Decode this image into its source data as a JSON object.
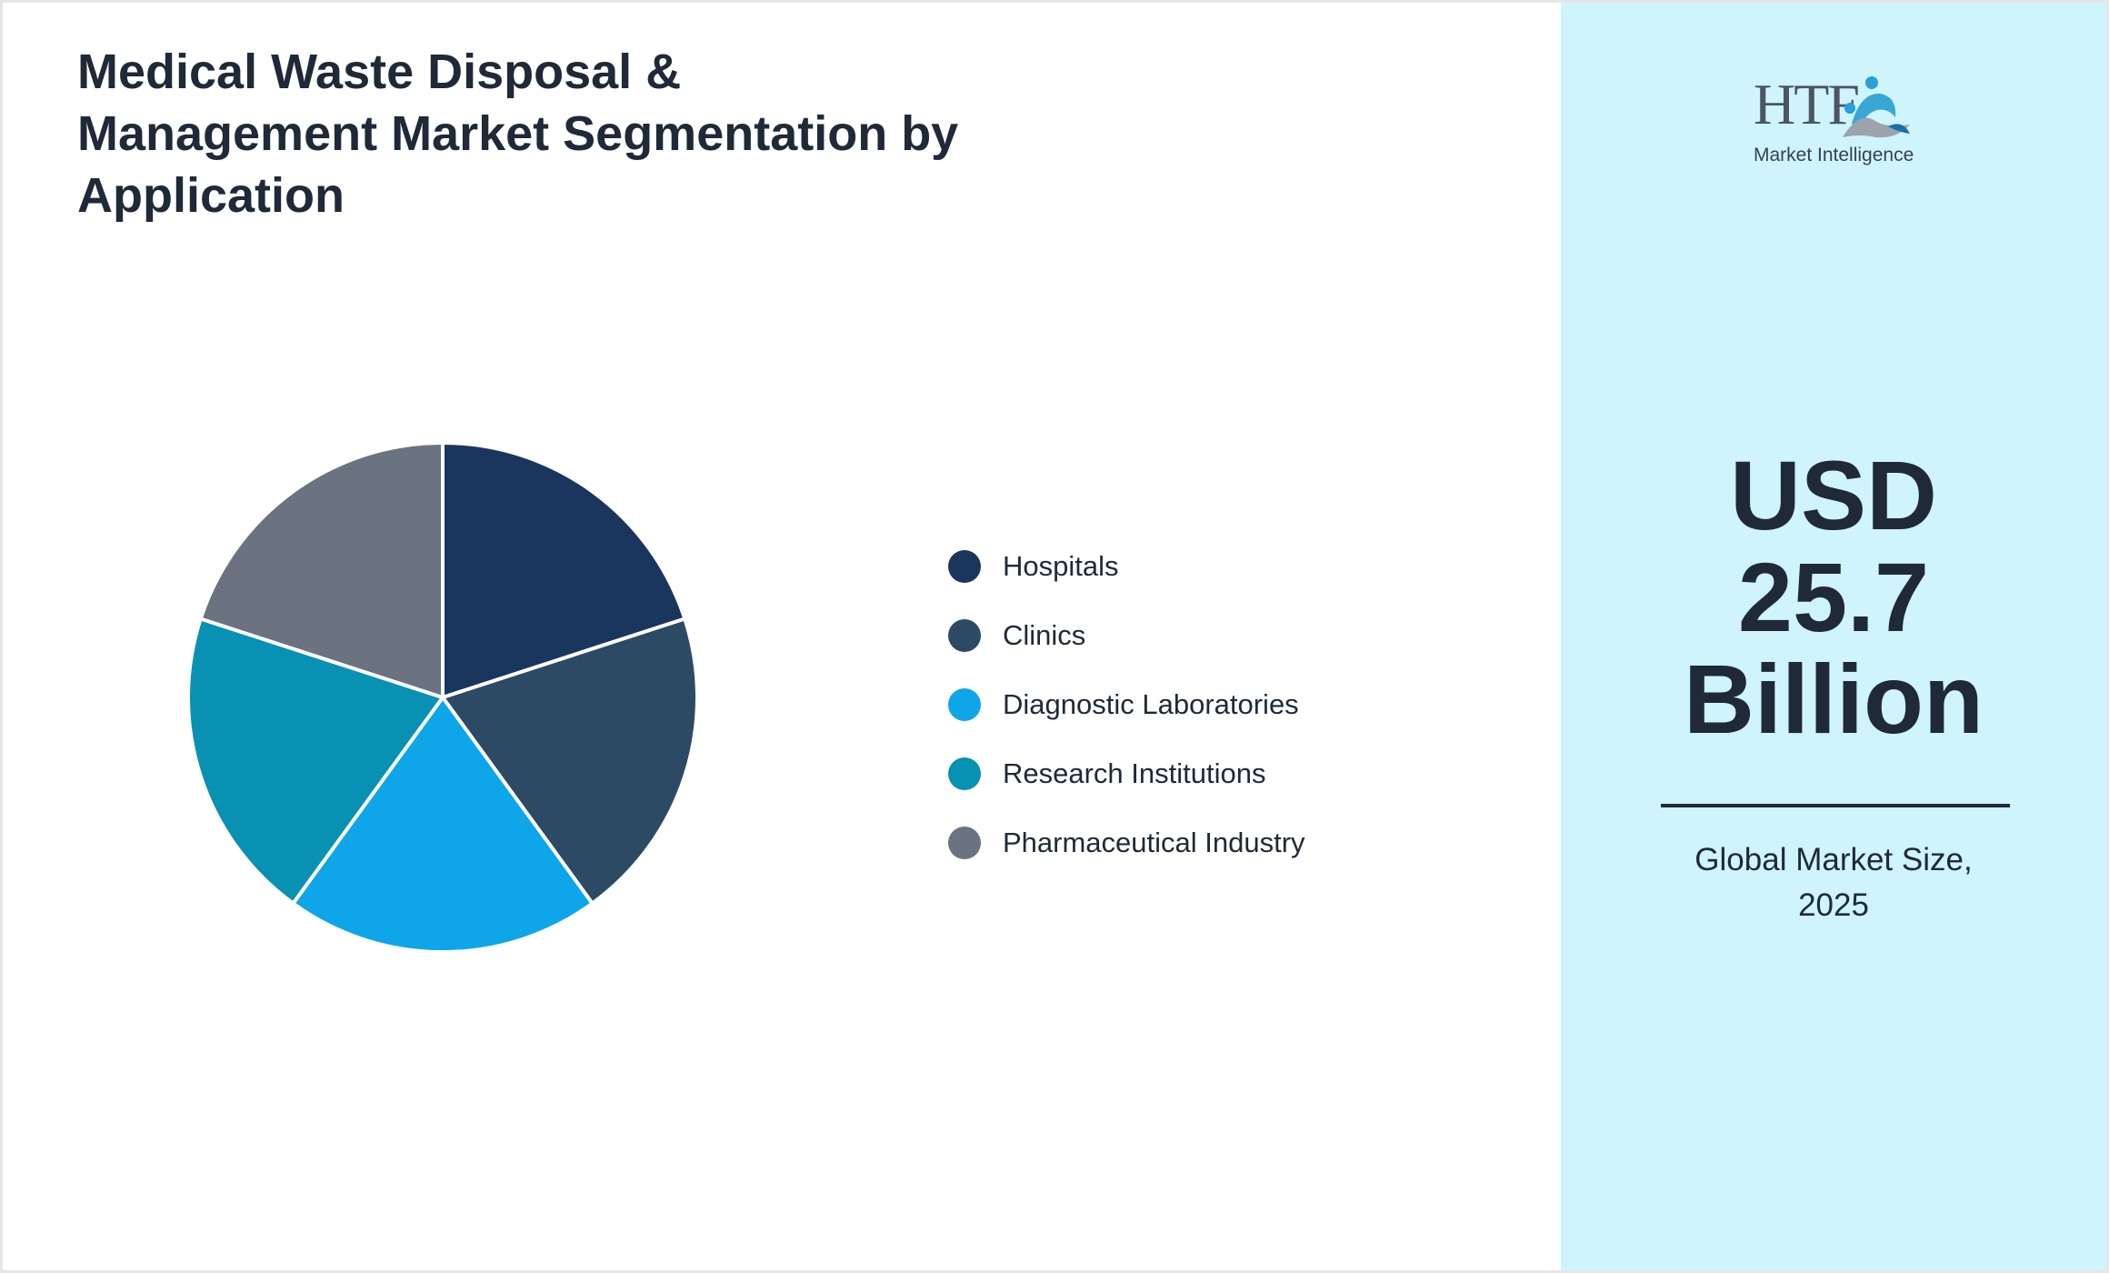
{
  "chart_data": {
    "type": "pie",
    "title": "Medical Waste Disposal & Management Market Segmentation by Application",
    "categories": [
      "Hospitals",
      "Clinics",
      "Diagnostic Laboratories",
      "Research Institutions",
      "Pharmaceutical Industry"
    ],
    "values": [
      20,
      20,
      20,
      20,
      20
    ],
    "colors": [
      "#1b365d",
      "#2d4a64",
      "#0ea5e9",
      "#0891b2",
      "#6b7280"
    ],
    "legend_position": "right"
  },
  "side_panel": {
    "logo_text": "HTF",
    "logo_subtitle": "Market Intelligence",
    "value_lines": [
      "USD",
      "25.7",
      "Billion"
    ],
    "caption_lines": [
      "Global Market Size,",
      "2025"
    ]
  }
}
